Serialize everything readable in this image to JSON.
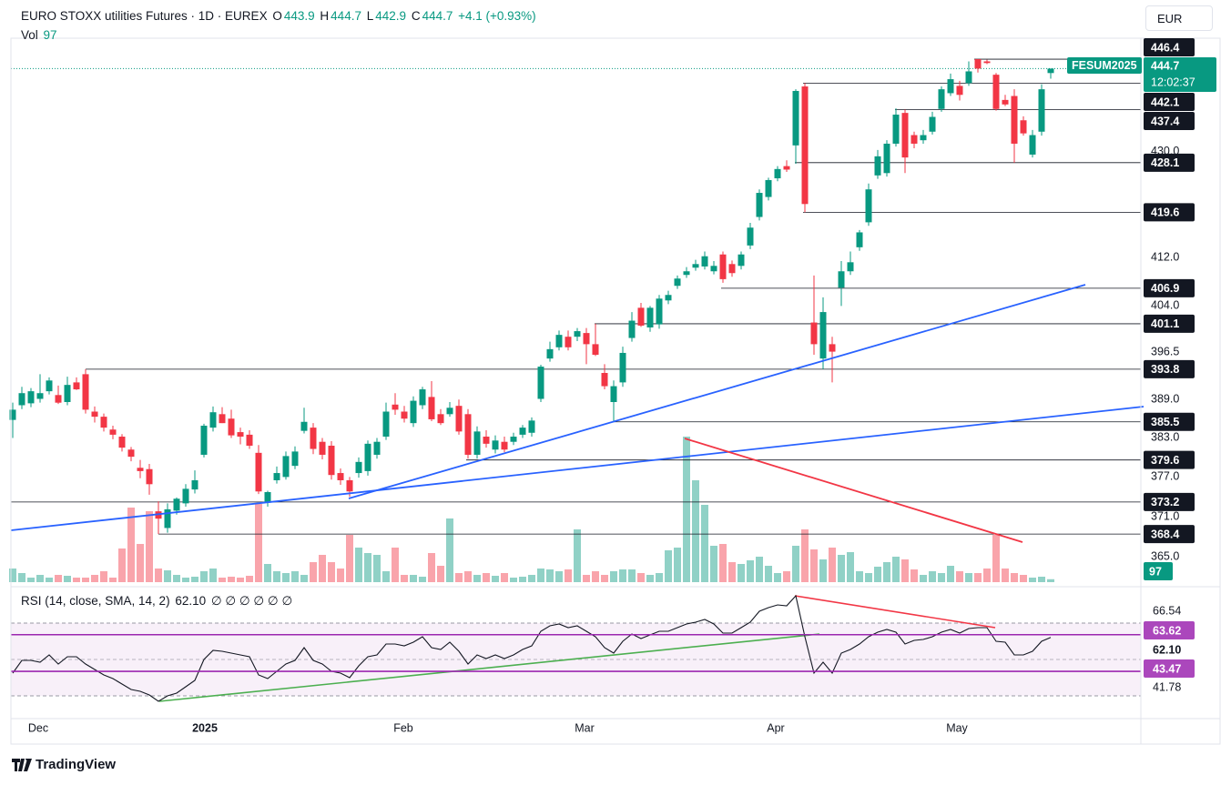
{
  "chart_data": {
    "type": "candlestick",
    "header": {
      "symbol": "EURO STOXX utilities Futures · 1D · EUREX",
      "ohlc_letters": [
        "O",
        "H",
        "L",
        "C"
      ],
      "change": "+4.1 (+0.93%)",
      "currency": "EUR",
      "ticker": "FESUM2025",
      "countdown": "12:02:37",
      "brand": "TradingView"
    },
    "log": true,
    "ylim": [
      361.3,
      450.2
    ],
    "xlim": [
      -0.2,
      123.9
    ],
    "grid": false,
    "up_color": "#089981",
    "down_color": "#f23645",
    "yticks": [
      {
        "value": 430,
        "label": "430.0"
      },
      {
        "value": 412,
        "label": "412.0"
      },
      {
        "value": 404,
        "label": "404.0"
      },
      396.5,
      {
        "value": 389,
        "label": "389.0"
      },
      {
        "value": 383,
        "label": "383.0"
      },
      {
        "value": 377,
        "label": "377.0"
      },
      {
        "value": 371,
        "label": "371.0"
      },
      {
        "value": 365,
        "label": "365.0"
      }
    ],
    "xticks": [
      {
        "value": 2.8,
        "label": "Dec"
      },
      {
        "value": 21.1,
        "label": "2025"
      },
      {
        "value": 42.9,
        "label": "Feb"
      },
      {
        "value": 62.8,
        "label": "Mar"
      },
      {
        "value": 83.8,
        "label": "Apr"
      },
      {
        "value": 103.7,
        "label": "May"
      }
    ],
    "levels": [
      446.4,
      442.1,
      437.4,
      428.1,
      419.6,
      406.9,
      401.1,
      393.8,
      385.5,
      379.6,
      373.2,
      368.4
    ],
    "candles": [
      [
        385.8,
        388.5,
        383.0,
        387.4
      ],
      [
        388.1,
        391.0,
        387.5,
        390.0
      ],
      [
        388.4,
        390.8,
        387.8,
        390.3
      ],
      [
        389.1,
        393.0,
        388.5,
        390.0
      ],
      [
        390.3,
        392.5,
        389.8,
        392.0
      ],
      [
        389.7,
        391.2,
        388.3,
        388.5
      ],
      [
        388.6,
        392.6,
        388.1,
        391.3
      ],
      [
        391.7,
        392.5,
        390.5,
        390.6
      ],
      [
        393.0,
        393.8,
        386.8,
        387.4
      ],
      [
        387.1,
        387.9,
        385.4,
        386.3
      ],
      [
        386.3,
        386.8,
        384.0,
        384.6
      ],
      [
        384.3,
        384.9,
        382.8,
        383.5
      ],
      [
        383.2,
        383.6,
        380.9,
        381.5
      ],
      [
        381.2,
        381.6,
        379.4,
        380.1
      ],
      [
        378.4,
        379.6,
        376.8,
        377.9
      ],
      [
        378.2,
        379.0,
        374.3,
        375.9
      ],
      [
        371.8,
        373.3,
        368.4,
        370.7
      ],
      [
        369.3,
        373.0,
        368.6,
        372.1
      ],
      [
        371.9,
        373.9,
        371.3,
        373.7
      ],
      [
        373.0,
        375.9,
        372.5,
        375.2
      ],
      [
        375.1,
        378.0,
        374.5,
        376.5
      ],
      [
        380.4,
        385.2,
        380.0,
        384.9
      ],
      [
        384.6,
        387.9,
        384.0,
        387.0
      ],
      [
        386.7,
        387.8,
        385.3,
        385.3
      ],
      [
        386.0,
        387.4,
        383.0,
        383.4
      ],
      [
        383.9,
        384.6,
        382.0,
        383.2
      ],
      [
        383.5,
        384.2,
        381.3,
        381.8
      ],
      [
        380.7,
        381.9,
        374.4,
        374.8
      ],
      [
        373.1,
        374.9,
        372.5,
        374.7
      ],
      [
        376.5,
        378.6,
        376.0,
        377.6
      ],
      [
        377.0,
        380.9,
        376.6,
        380.2
      ],
      [
        378.7,
        381.7,
        378.2,
        380.9
      ],
      [
        384.1,
        387.7,
        383.7,
        385.5
      ],
      [
        384.6,
        385.3,
        380.5,
        381.3
      ],
      [
        382.4,
        383.0,
        379.7,
        380.4
      ],
      [
        381.8,
        382.5,
        376.6,
        377.3
      ],
      [
        377.6,
        378.3,
        375.8,
        376.5
      ],
      [
        376.5,
        377.0,
        374.0,
        374.8
      ],
      [
        377.6,
        380.0,
        376.9,
        379.3
      ],
      [
        377.9,
        382.6,
        377.2,
        382.1
      ],
      [
        380.4,
        383.0,
        379.8,
        382.4
      ],
      [
        383.2,
        388.5,
        382.7,
        387.1
      ],
      [
        388.2,
        390.0,
        386.6,
        387.4
      ],
      [
        387.1,
        388.0,
        385.4,
        386.0
      ],
      [
        385.3,
        389.5,
        384.7,
        388.8
      ],
      [
        388.1,
        391.0,
        387.5,
        390.6
      ],
      [
        389.4,
        391.9,
        385.6,
        385.9
      ],
      [
        386.7,
        387.5,
        385.0,
        385.3
      ],
      [
        386.7,
        388.6,
        386.3,
        387.7
      ],
      [
        388.0,
        389.0,
        383.5,
        384.0
      ],
      [
        386.7,
        387.5,
        379.8,
        380.4
      ],
      [
        380.4,
        384.8,
        379.8,
        384.0
      ],
      [
        383.2,
        384.2,
        381.5,
        382.1
      ],
      [
        381.2,
        383.4,
        380.6,
        382.6
      ],
      [
        382.4,
        383.2,
        380.8,
        381.2
      ],
      [
        382.4,
        383.8,
        381.9,
        383.2
      ],
      [
        383.5,
        385.0,
        383.0,
        384.6
      ],
      [
        383.8,
        386.2,
        383.2,
        385.7
      ],
      [
        389.1,
        394.5,
        388.6,
        394.2
      ],
      [
        395.5,
        398.2,
        395.0,
        397.0
      ],
      [
        397.3,
        400.0,
        396.8,
        399.3
      ],
      [
        399.0,
        400.0,
        396.8,
        397.3
      ],
      [
        399.0,
        400.4,
        398.3,
        399.9
      ],
      [
        399.6,
        400.4,
        394.6,
        397.8
      ],
      [
        397.8,
        401.1,
        395.9,
        396.1
      ],
      [
        393.2,
        394.6,
        390.6,
        391.1
      ],
      [
        388.6,
        392.0,
        385.6,
        391.1
      ],
      [
        391.7,
        397.4,
        391.0,
        396.4
      ],
      [
        398.8,
        403.0,
        398.2,
        401.6
      ],
      [
        403.7,
        404.5,
        400.6,
        400.8
      ],
      [
        400.5,
        404.0,
        399.8,
        403.7
      ],
      [
        401.0,
        405.8,
        400.3,
        405.2
      ],
      [
        404.9,
        406.5,
        404.3,
        405.8
      ],
      [
        407.3,
        409.0,
        406.8,
        408.5
      ],
      [
        409.1,
        410.4,
        408.6,
        409.7
      ],
      [
        410.3,
        411.6,
        409.8,
        410.9
      ],
      [
        410.5,
        413.0,
        410.0,
        412.2
      ],
      [
        409.7,
        411.4,
        409.2,
        410.6
      ],
      [
        412.5,
        413.0,
        407.8,
        408.4
      ],
      [
        410.9,
        411.5,
        408.8,
        409.4
      ],
      [
        410.6,
        413.0,
        410.0,
        412.5
      ],
      [
        414.0,
        417.8,
        413.4,
        417.0
      ],
      [
        418.8,
        423.5,
        418.2,
        422.9
      ],
      [
        422.2,
        425.5,
        421.6,
        425.1
      ],
      [
        425.4,
        427.5,
        424.9,
        427.0
      ],
      [
        427.5,
        428.5,
        426.5,
        426.9
      ],
      [
        431.1,
        441.0,
        427.9,
        440.7
      ],
      [
        441.5,
        442.1,
        419.6,
        421.0
      ],
      [
        401.3,
        409.0,
        396.1,
        397.8
      ],
      [
        395.5,
        405.4,
        393.8,
        403.0
      ],
      [
        397.8,
        399.0,
        391.7,
        396.6
      ],
      [
        407.0,
        411.4,
        404.0,
        409.7
      ],
      [
        409.7,
        413.0,
        409.1,
        411.2
      ],
      [
        413.7,
        416.6,
        413.1,
        416.2
      ],
      [
        417.9,
        424.5,
        417.3,
        423.5
      ],
      [
        425.9,
        430.3,
        425.3,
        429.2
      ],
      [
        426.3,
        432.0,
        425.7,
        431.4
      ],
      [
        431.4,
        437.6,
        430.9,
        436.5
      ],
      [
        436.8,
        437.4,
        426.3,
        429.0
      ],
      [
        432.9,
        433.5,
        430.6,
        431.4
      ],
      [
        432.0,
        433.8,
        431.4,
        432.9
      ],
      [
        433.5,
        437.0,
        433.0,
        436.1
      ],
      [
        437.5,
        441.5,
        437.0,
        441.0
      ],
      [
        440.3,
        443.8,
        439.8,
        442.8
      ],
      [
        441.6,
        442.5,
        439.0,
        440.0
      ],
      [
        442.1,
        446.0,
        441.6,
        444.2
      ],
      [
        446.4,
        446.4,
        444.0,
        444.7
      ],
      [
        446.0,
        446.3,
        445.5,
        445.7
      ],
      [
        443.6,
        443.9,
        437.2,
        437.5
      ],
      [
        439.1,
        440.0,
        438.0,
        438.3
      ],
      [
        439.8,
        441.0,
        428.1,
        431.4
      ],
      [
        435.5,
        436.2,
        432.8,
        433.2
      ],
      [
        429.5,
        433.8,
        429.0,
        432.9
      ],
      [
        433.5,
        441.9,
        432.8,
        441.0
      ],
      [
        443.9,
        444.7,
        442.9,
        444.7
      ]
    ],
    "volume": {
      "label": "Vol",
      "ylim": [
        0,
        17940
      ],
      "values": [
        450,
        300,
        150,
        240,
        150,
        240,
        210,
        150,
        150,
        240,
        360,
        150,
        1110,
        2460,
        1260,
        2340,
        450,
        390,
        240,
        150,
        180,
        360,
        450,
        150,
        180,
        150,
        210,
        2580,
        600,
        360,
        300,
        360,
        240,
        660,
        900,
        660,
        450,
        1560,
        1140,
        960,
        900,
        360,
        1140,
        240,
        240,
        180,
        960,
        540,
        2100,
        300,
        360,
        240,
        300,
        210,
        300,
        150,
        180,
        240,
        450,
        420,
        360,
        420,
        1740,
        240,
        360,
        240,
        360,
        420,
        420,
        300,
        240,
        300,
        1050,
        1140,
        4800,
        3360,
        2550,
        1200,
        1260,
        660,
        600,
        720,
        840,
        540,
        300,
        360,
        1200,
        1740,
        1080,
        750,
        1140,
        900,
        990,
        360,
        300,
        510,
        660,
        840,
        750,
        420,
        240,
        360,
        300,
        540,
        360,
        300,
        300,
        450,
        1560,
        450,
        300,
        240,
        150,
        180,
        97
      ]
    },
    "rsi": {
      "title": "RSI (14, close, SMA, 14, 2)",
      "value_label": "62.10",
      "nulls": "∅ ∅ ∅ ∅ ∅ ∅",
      "ylim": [
        17.5,
        87.5
      ],
      "yticks": [
        66.54,
        41.78
      ],
      "bands": [
        63.62,
        43.47
      ],
      "band_color": "#9c27b0",
      "values": [
        42.5,
        49.5,
        49.5,
        48.5,
        52.5,
        47.5,
        51.5,
        51.5,
        47.5,
        44.5,
        41.5,
        39.5,
        36.5,
        33.5,
        32.5,
        30.5,
        27,
        30,
        31.5,
        35,
        38.5,
        50,
        55,
        54.5,
        53.5,
        52.5,
        51.5,
        41.5,
        39.5,
        43.5,
        47.5,
        49.5,
        56.5,
        49.5,
        47.5,
        43.5,
        42.5,
        40,
        46.5,
        51.5,
        52.5,
        58.5,
        58.5,
        57.5,
        59.5,
        62.5,
        56.5,
        55.5,
        59.5,
        54.5,
        47.5,
        52.5,
        50.5,
        52.5,
        50.5,
        52.5,
        55.5,
        57.5,
        65.5,
        68.5,
        69.5,
        67.5,
        68.5,
        65.5,
        62.5,
        56.5,
        53.5,
        60,
        64,
        61.5,
        63.5,
        65.5,
        65.5,
        67.5,
        69.5,
        70.5,
        72,
        69.5,
        64.5,
        64.5,
        67.5,
        70.5,
        76.5,
        78.5,
        80,
        79.5,
        85,
        62.5,
        42.5,
        48.5,
        42.5,
        53.5,
        55.5,
        58.5,
        62.5,
        65,
        66.5,
        65,
        58.5,
        60.5,
        61,
        62.5,
        65,
        66.5,
        64.5,
        67,
        67.5,
        67.5,
        60,
        59.5,
        52.5,
        52.5,
        54.5,
        60,
        62.1
      ]
    }
  }
}
